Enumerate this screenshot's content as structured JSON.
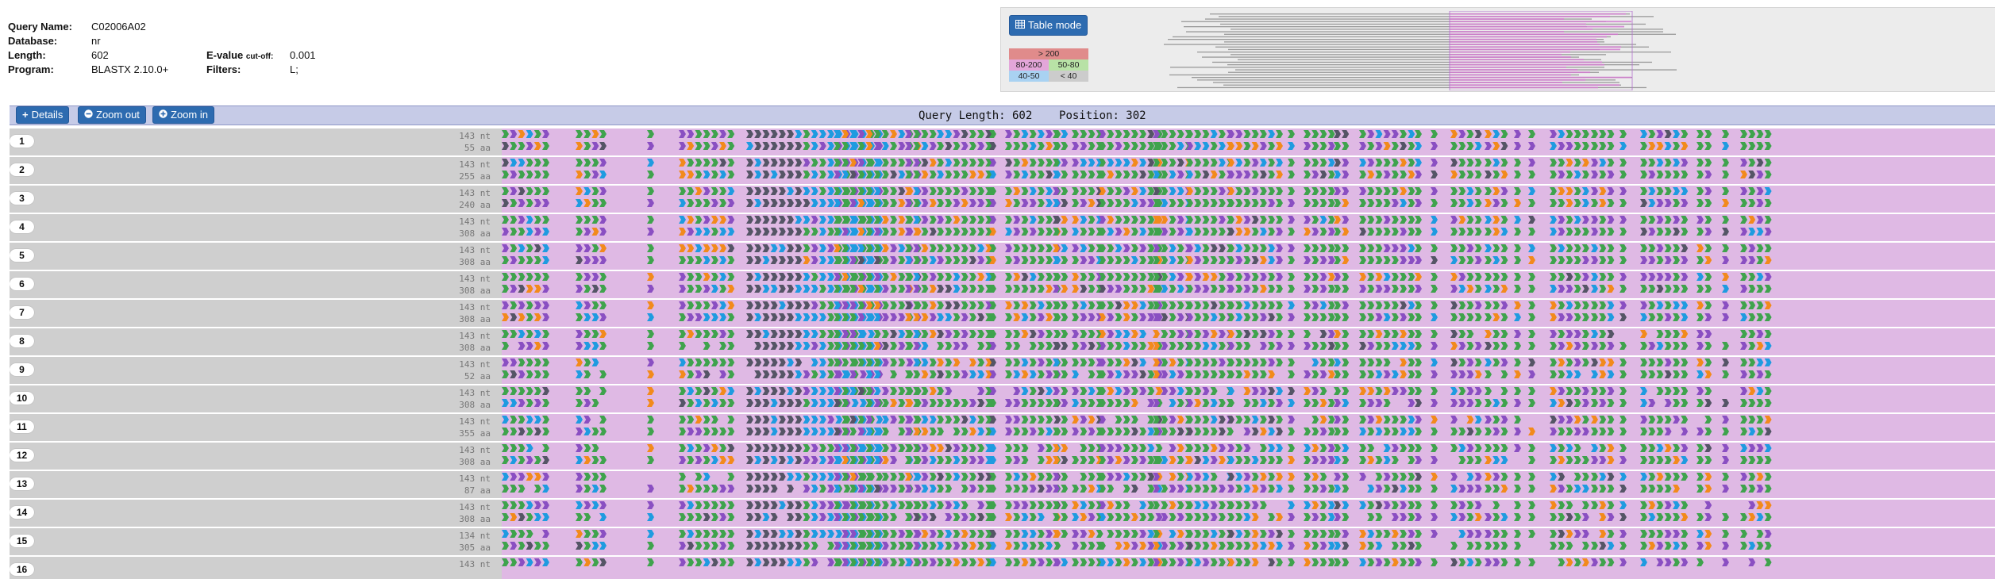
{
  "query": {
    "name_label": "Query Name:",
    "name": "C02006A02",
    "database_label": "Database:",
    "database": "nr",
    "length_label": "Length:",
    "length": "602",
    "program_label": "Program:",
    "program": "BLASTX 2.10.0+",
    "evalue_label": "E-value",
    "evalue_suffix": "cut-off:",
    "evalue": "0.001",
    "filters_label": "Filters:",
    "filters": "L;"
  },
  "overview": {
    "table_mode_label": "Table mode",
    "legend": [
      {
        "label": "> 200",
        "color": "#e08b8b"
      },
      {
        "label": "80-200",
        "color": "#e3a6d9"
      },
      {
        "label": "50-80",
        "color": "#b8e2a6"
      },
      {
        "label": "40-50",
        "color": "#a9d2f2"
      },
      {
        "label": "< 40",
        "color": "#cccccc"
      }
    ]
  },
  "toolbar": {
    "details_label": "Details",
    "zoom_out_label": "Zoom out",
    "zoom_in_label": "Zoom in",
    "query_length_text": "Query Length: 602",
    "position_text": "Position: 302"
  },
  "colors": {
    "green": "#3fa34d",
    "purple": "#8a4fc2",
    "blue": "#1f9be0",
    "orange": "#f28a1c",
    "dark": "#555566",
    "pink": "#dfb9e4",
    "gray": "#cfcfcf"
  },
  "hits": [
    {
      "num": "1",
      "nt": "143 nt",
      "aa": "55 aa"
    },
    {
      "num": "2",
      "nt": "143 nt",
      "aa": "255 aa"
    },
    {
      "num": "3",
      "nt": "143 nt",
      "aa": "240 aa"
    },
    {
      "num": "4",
      "nt": "143 nt",
      "aa": "308 aa"
    },
    {
      "num": "5",
      "nt": "143 nt",
      "aa": "308 aa"
    },
    {
      "num": "6",
      "nt": "143 nt",
      "aa": "308 aa"
    },
    {
      "num": "7",
      "nt": "143 nt",
      "aa": "308 aa"
    },
    {
      "num": "8",
      "nt": "143 nt",
      "aa": "308 aa"
    },
    {
      "num": "9",
      "nt": "143 nt",
      "aa": "52 aa"
    },
    {
      "num": "10",
      "nt": "143 nt",
      "aa": "308 aa"
    },
    {
      "num": "11",
      "nt": "143 nt",
      "aa": "355 aa"
    },
    {
      "num": "12",
      "nt": "143 nt",
      "aa": "308 aa"
    },
    {
      "num": "13",
      "nt": "143 nt",
      "aa": "87 aa"
    },
    {
      "num": "14",
      "nt": "143 nt",
      "aa": "308 aa"
    },
    {
      "num": "15",
      "nt": "134 nt",
      "aa": "305 aa"
    },
    {
      "num": "16",
      "nt": "143 nt",
      "aa": ""
    }
  ]
}
